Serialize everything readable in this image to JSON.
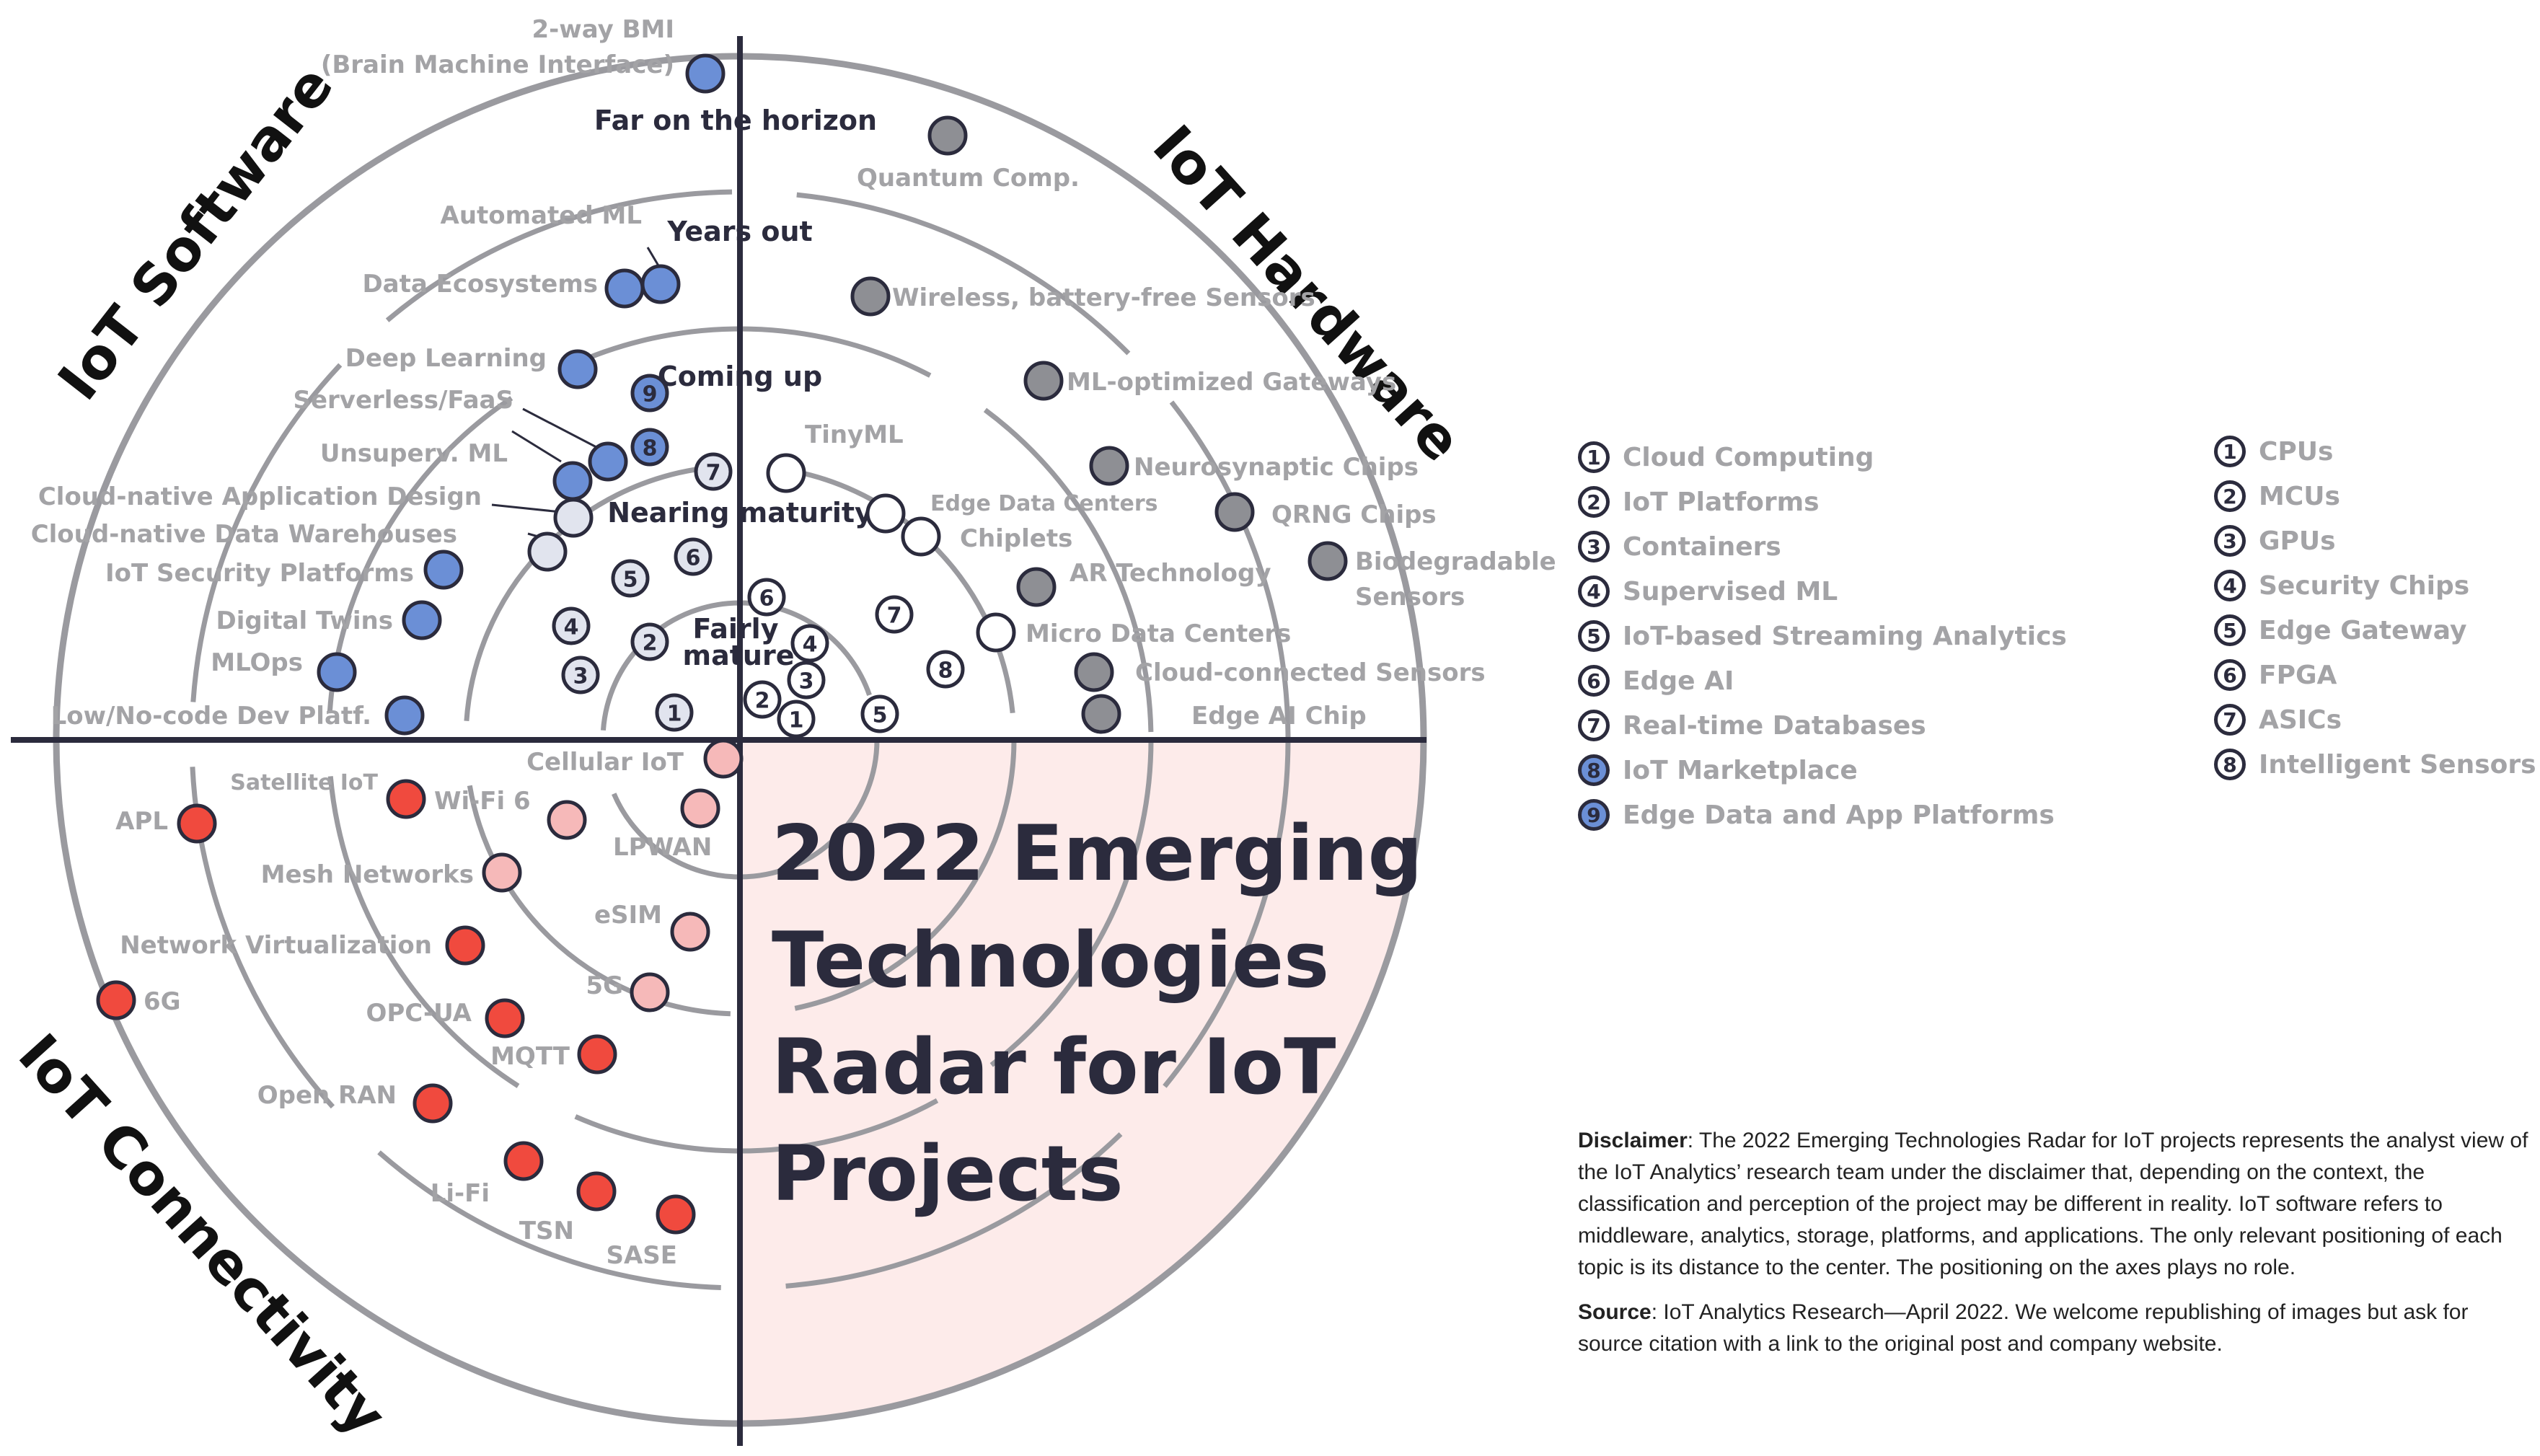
{
  "title_lines": [
    "2022 Emerging",
    "Technologies",
    "Radar for IoT",
    "Projects"
  ],
  "quadrants": {
    "software": "IoT Software",
    "hardware": "IoT Hardware",
    "connectivity": "IoT Connectivity"
  },
  "rings": {
    "far": "Far on the horizon",
    "years": "Years out",
    "coming": "Coming up",
    "nearing": "Nearing maturity",
    "fairly_1": "Fairly",
    "fairly_2": "mature"
  },
  "colors": {
    "software": "#6b8fd6",
    "software_light": "#e1e4ee",
    "hardware": "#8e8f94",
    "connectivity": "#f04a3e",
    "connectivity_light": "#f6b9b9",
    "quadrant_fill": "#fdebea",
    "dark": "#2b2b3d"
  },
  "labels": {
    "bmi_1": "2-way BMI",
    "bmi_2": "(Brain Machine Interface)",
    "automated_ml": "Automated ML",
    "data_eco": "Data Ecosystems",
    "deep_learning": "Deep Learning",
    "serverless": "Serverless/FaaS",
    "unsuperv_ml": "Unsuperv. ML",
    "cloud_app": "Cloud-native Application Design",
    "cloud_dw": "Cloud-native Data Warehouses",
    "iot_security": "IoT Security Platforms",
    "digital_twins": "Digital Twins",
    "mlops": "MLOps",
    "lowcode": "Low/No-code Dev Platf.",
    "quantum": "Quantum Comp.",
    "wireless": "Wireless, battery-free Sensors",
    "ml_gateways": "ML-optimized Gateways",
    "neuro": "Neurosynaptic Chips",
    "qrng": "QRNG Chips",
    "bio_1": "Biodegradable",
    "bio_2": "Sensors",
    "ar": "AR Technology",
    "micro_dc": "Micro Data Centers",
    "cloud_sensors": "Cloud-connected Sensors",
    "edge_ai_chip": "Edge AI Chip",
    "tinyml": "TinyML",
    "edge_dc": "Edge Data Centers",
    "chiplets": "Chiplets",
    "cellular": "Cellular IoT",
    "satellite": "Satellite IoT",
    "wifi6": "Wi-Fi 6",
    "apl": "APL",
    "mesh": "Mesh Networks",
    "lpwan": "LPWAN",
    "netvirt": "Network Virtualization",
    "esim": "eSIM",
    "sixg": "6G",
    "opcua": "OPC-UA",
    "fiveg": "5G",
    "mqtt": "MQTT",
    "openran": "Open RAN",
    "lifi": "Li-Fi",
    "tsn": "TSN",
    "sase": "SASE"
  },
  "numbers": [
    "1",
    "2",
    "3",
    "4",
    "5",
    "6",
    "7",
    "8",
    "9"
  ],
  "legend_software": [
    {
      "num": "1",
      "label": "Cloud Computing"
    },
    {
      "num": "2",
      "label": "IoT Platforms"
    },
    {
      "num": "3",
      "label": "Containers"
    },
    {
      "num": "4",
      "label": "Supervised ML"
    },
    {
      "num": "5",
      "label": "IoT-based Streaming Analytics"
    },
    {
      "num": "6",
      "label": "Edge AI"
    },
    {
      "num": "7",
      "label": "Real-time Databases"
    },
    {
      "num": "8",
      "label": "IoT Marketplace"
    },
    {
      "num": "9",
      "label": "Edge Data and App Platforms"
    }
  ],
  "legend_hardware": [
    {
      "num": "1",
      "label": "CPUs"
    },
    {
      "num": "2",
      "label": "MCUs"
    },
    {
      "num": "3",
      "label": "GPUs"
    },
    {
      "num": "4",
      "label": "Security Chips"
    },
    {
      "num": "5",
      "label": "Edge Gateway"
    },
    {
      "num": "6",
      "label": "FPGA"
    },
    {
      "num": "7",
      "label": "ASICs"
    },
    {
      "num": "8",
      "label": "Intelligent Sensors"
    }
  ],
  "notes": {
    "disclaimer_label": "Disclaimer",
    "disclaimer_text": ": The 2022 Emerging Technologies Radar for IoT projects represents the analyst view of the IoT Analytics’ research team under the disclaimer that, depending on the context, the classification and perception of the project may be different in reality. IoT software refers to middleware, analytics, storage, platforms, and applications. The only relevant positioning of each topic is its distance to the center. The positioning on the axes plays no role.",
    "source_label": "Source",
    "source_text": ": IoT Analytics Research—April 2022. We welcome republishing of images but ask for source citation with a link to the original post and company website."
  }
}
